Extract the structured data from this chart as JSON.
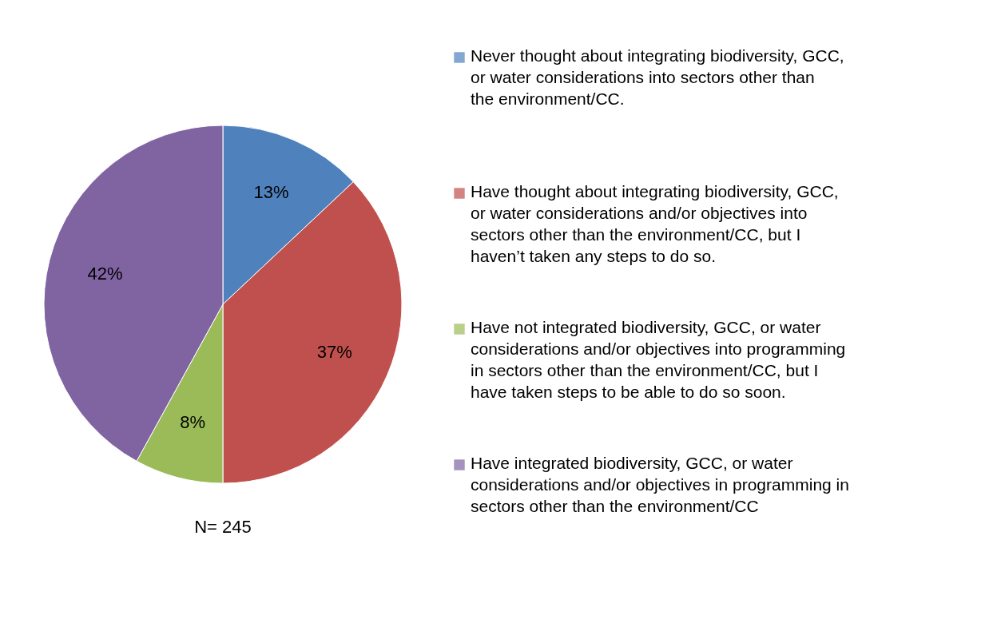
{
  "chart_data": {
    "type": "pie",
    "categories": [
      "Never thought about integrating biodiversity, GCC, or water considerations into sectors other than the environment/CC.",
      "Have thought about integrating biodiversity, GCC, or water considerations and/or objectives into sectors other than the environment/CC, but I haven’t taken any steps to do so.",
      "Have not integrated biodiversity, GCC, or water considerations and/or objectives into programming in sectors other than the environment/CC, but I have taken steps to be able to do so soon.",
      "Have integrated biodiversity, GCC, or water considerations and/or objectives in programming in sectors other than the environment/CC"
    ],
    "values": [
      13,
      37,
      8,
      42
    ],
    "value_labels": [
      "13%",
      "37%",
      "8%",
      "42%"
    ],
    "colors": [
      "#4f81bd",
      "#c0504d",
      "#9bbb59",
      "#8064a2"
    ],
    "annotations": [
      "N= 245"
    ],
    "legend": "right"
  }
}
